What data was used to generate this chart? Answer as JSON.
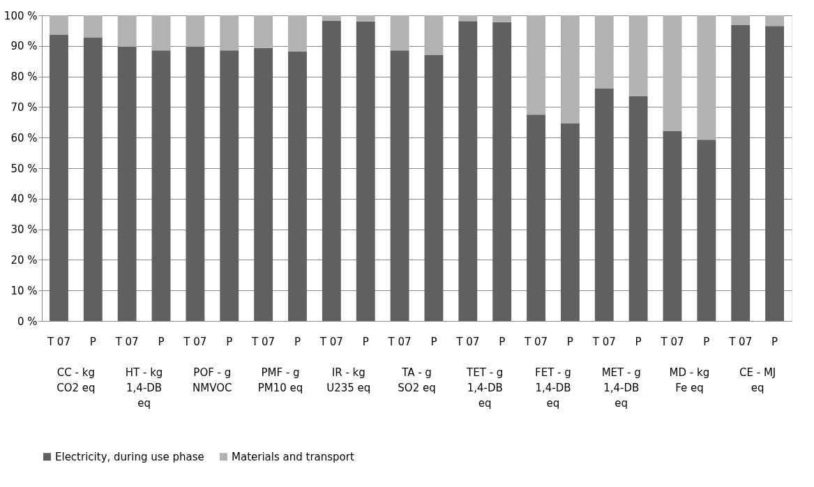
{
  "chart_data": {
    "type": "bar",
    "stacked": true,
    "categories": [
      "T 07",
      "P",
      "T 07",
      "P",
      "T 07",
      "P",
      "T 07",
      "P",
      "T 07",
      "P",
      "T 07",
      "P",
      "T 07",
      "P",
      "T 07",
      "P",
      "T 07",
      "P",
      "T 07",
      "P",
      "T 07",
      "P"
    ],
    "annotations": [
      "CC - kg\nCO2 eq",
      "HT - kg\n1,4-DB\neq",
      "POF - g\nNMVOC",
      "PMF  - g\nPM10 eq",
      "IR - kg\nU235 eq",
      "TA - g\nSO2 eq",
      "TET - g\n1,4-DB\neq",
      "FET - g\n1,4-DB\neq",
      "MET - g\n1,4-DB\neq",
      "MD - kg\nFe eq",
      "CE - MJ\neq"
    ],
    "series": [
      {
        "name": "Electricity, during use phase",
        "color": "#606060",
        "values": [
          93.7,
          92.8,
          89.7,
          88.5,
          89.7,
          88.5,
          89.3,
          88.2,
          98.3,
          98.0,
          88.5,
          87.0,
          98.1,
          97.8,
          67.5,
          64.7,
          76.0,
          73.6,
          62.2,
          59.3,
          96.8,
          96.5
        ]
      },
      {
        "name": "Materials and transport",
        "color": "#b2b2b2",
        "values": [
          6.3,
          7.2,
          10.3,
          11.5,
          10.3,
          11.5,
          10.7,
          11.8,
          1.7,
          2.0,
          11.5,
          13.0,
          1.9,
          2.2,
          32.5,
          35.3,
          24.0,
          26.4,
          37.8,
          40.7,
          3.2,
          3.5
        ]
      }
    ],
    "ylim": [
      0,
      100
    ],
    "yticks": [
      {
        "value": 0,
        "label": "0 %"
      },
      {
        "value": 10,
        "label": "10 %"
      },
      {
        "value": 20,
        "label": "20 %"
      },
      {
        "value": 30,
        "label": "30 %"
      },
      {
        "value": 40,
        "label": "40 %"
      },
      {
        "value": 50,
        "label": "50 %"
      },
      {
        "value": 60,
        "label": "60 %"
      },
      {
        "value": 70,
        "label": "70 %"
      },
      {
        "value": 80,
        "label": "80 %"
      },
      {
        "value": 90,
        "label": "90 %"
      },
      {
        "value": 100,
        "label": "100 %"
      }
    ],
    "grid": "y",
    "legend": "bottom"
  }
}
